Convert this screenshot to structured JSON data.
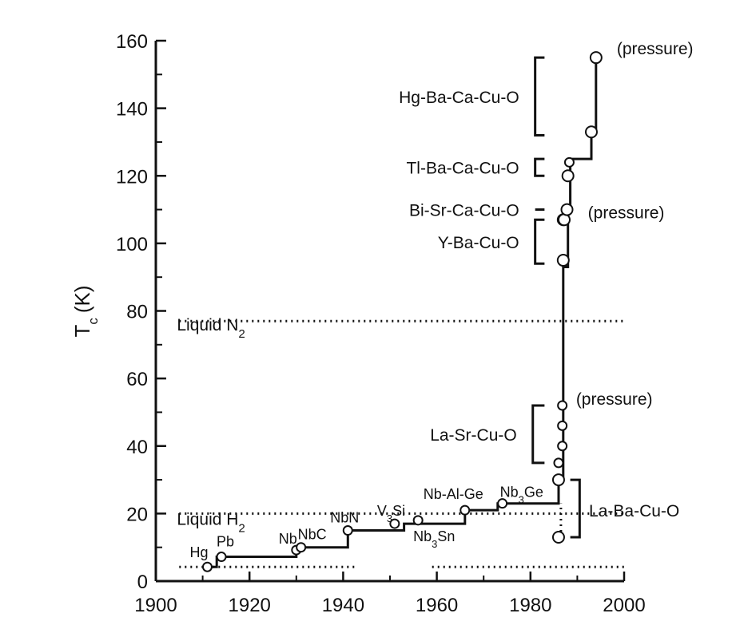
{
  "chart_data": {
    "type": "scatter",
    "title": "",
    "xlabel": "",
    "ylabel": "T",
    "ylabel_subscript": "c",
    "ylabel_unit": "(K)",
    "xlim": [
      1900,
      2000
    ],
    "ylim": [
      0,
      160
    ],
    "x_ticks": [
      1900,
      1920,
      1940,
      1960,
      1980,
      2000
    ],
    "y_ticks": [
      0,
      20,
      40,
      60,
      80,
      100,
      120,
      140,
      160
    ],
    "grid": false,
    "series": [
      {
        "type": "step-line",
        "points": [
          [
            1911,
            4.2
          ],
          [
            1913,
            4.2
          ],
          [
            1913,
            7.2
          ],
          [
            1930,
            7.2
          ],
          [
            1930,
            9.2
          ],
          [
            1931,
            9.2
          ],
          [
            1931,
            10
          ],
          [
            1941,
            10
          ],
          [
            1941,
            15
          ],
          [
            1953,
            15
          ],
          [
            1953,
            17
          ],
          [
            1966,
            17
          ],
          [
            1966,
            21
          ],
          [
            1973,
            21
          ],
          [
            1973,
            23
          ],
          [
            1986,
            23
          ],
          [
            1986,
            30
          ],
          [
            1987,
            30
          ],
          [
            1987,
            93
          ],
          [
            1988,
            93
          ],
          [
            1988,
            110
          ],
          [
            1988.5,
            110
          ],
          [
            1988.5,
            125
          ],
          [
            1993,
            125
          ],
          [
            1993,
            133
          ],
          [
            1994,
            133
          ],
          [
            1994,
            155
          ]
        ]
      },
      {
        "name": "",
        "type": "points",
        "x": [
          1911,
          1914,
          1930,
          1931,
          1941,
          1951,
          1956,
          1966,
          1974,
          1986,
          1986,
          1986,
          1986.8,
          1986.8,
          1986.8,
          1987,
          1987,
          1987.2,
          1987.8,
          1988,
          1988.3,
          1993,
          1994
        ],
        "y": [
          4.2,
          7.2,
          9.2,
          10,
          15,
          17,
          18,
          21,
          23,
          13,
          30,
          35,
          40,
          46,
          52,
          95,
          107,
          107,
          110,
          120,
          124,
          133,
          155
        ],
        "sizes": [
          "s",
          "s",
          "s",
          "s",
          "s",
          "s",
          "s",
          "s",
          "s",
          "l",
          "l",
          "s",
          "s",
          "s",
          "s",
          "l",
          "l",
          "l",
          "l",
          "l",
          "s",
          "l",
          "l"
        ]
      }
    ],
    "reference_lines": [
      {
        "label": "Liquid N",
        "label_subscript": "2",
        "y": 77
      },
      {
        "label": "Liquid H",
        "label_subscript": "2",
        "y": 20
      },
      {
        "label": "",
        "y": 4.2
      }
    ],
    "point_labels": [
      {
        "text": "Hg",
        "x": 1911,
        "y": 4.2
      },
      {
        "text": "Pb",
        "x": 1914,
        "y": 7.2
      },
      {
        "text": "Nb",
        "x": 1930,
        "y": 9.2
      },
      {
        "text": "NbC",
        "x": 1931,
        "y": 10
      },
      {
        "text": "NbN",
        "x": 1941,
        "y": 15
      },
      {
        "text": "V",
        "sub": "3",
        "after": "Si",
        "x": 1951,
        "y": 17
      },
      {
        "text": "Nb",
        "sub": "3",
        "after": "Sn",
        "x": 1956,
        "y": 18
      },
      {
        "text": "Nb-Al-Ge",
        "x": 1966,
        "y": 21
      },
      {
        "text": "Nb",
        "sub": "3",
        "after": "Ge",
        "x": 1974,
        "y": 23
      }
    ],
    "family_labels": [
      {
        "text": "Hg-Ba-Ca-Cu-O",
        "range": [
          132,
          155
        ]
      },
      {
        "text": "Tl-Ba-Ca-Cu-O",
        "range": [
          120,
          125
        ]
      },
      {
        "text": "Bi-Sr-Ca-Cu-O",
        "range": [
          110,
          110
        ]
      },
      {
        "text": "Y-Ba-Cu-O",
        "range": [
          94,
          107
        ]
      },
      {
        "text": "La-Sr-Cu-O",
        "range": [
          35,
          52
        ]
      },
      {
        "text": "La-Ba-Cu-O",
        "range": [
          13,
          30
        ]
      }
    ],
    "annotations": [
      {
        "text": "(pressure)",
        "x": 1994,
        "y": 155
      },
      {
        "text": "(pressure)",
        "x": 1988,
        "y": 110
      },
      {
        "text": "(pressure)",
        "x": 1987,
        "y": 52
      }
    ]
  }
}
